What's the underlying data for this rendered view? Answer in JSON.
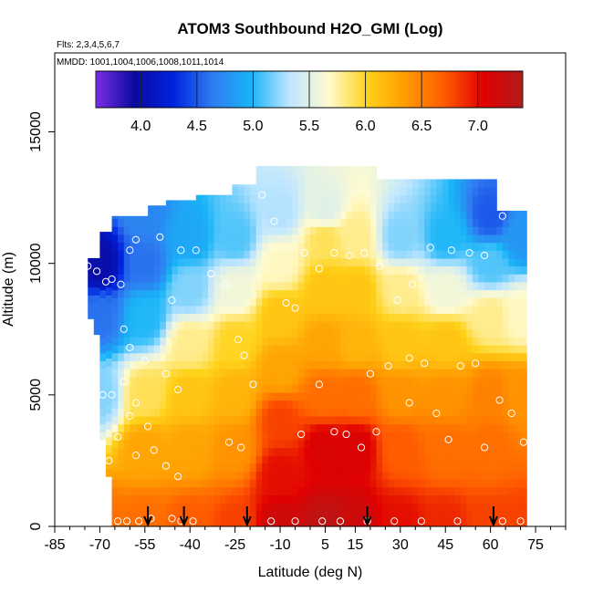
{
  "chart_data": {
    "type": "heatmap",
    "title": "ATOM3 Southbound H2O_GMI (Log)",
    "flights_label": "Flts: 2,3,4,5,6,7",
    "dates_label": "MMDD: 1001,1004,1006,1008,1011,1014",
    "xlabel": "Latitude (deg N)",
    "ylabel": "Altitude (m)",
    "xlim": [
      -85,
      85
    ],
    "ylim": [
      0,
      18000
    ],
    "x_ticks": [
      -85,
      -70,
      -55,
      -40,
      -25,
      -10,
      5,
      15,
      30,
      45,
      60,
      75
    ],
    "y_ticks": [
      0,
      5000,
      10000,
      15000
    ],
    "colorbar": {
      "range": [
        3.6,
        7.4
      ],
      "ticks": [
        "4.0",
        "4.5",
        "5.0",
        "5.5",
        "6.0",
        "6.5",
        "7.0"
      ],
      "tick_values": [
        4.0,
        4.5,
        5.0,
        5.5,
        6.0,
        6.5,
        7.0
      ],
      "divider_values": [
        3.6,
        4.0,
        4.5,
        5.0,
        5.5,
        6.0,
        6.5,
        7.0,
        7.4
      ],
      "colors": [
        "#7a2ee6",
        "#0a0a9e",
        "#0022e0",
        "#2f7cf0",
        "#19b4f7",
        "#bfe6ff",
        "#fffbd0",
        "#ffd21a",
        "#ff9a00",
        "#ff5a00",
        "#e00000",
        "#b21b1b"
      ]
    },
    "series": [
      {
        "values": [
          [
            -70,
            0,
            6.6
          ],
          [
            -70,
            5000,
            5.2
          ],
          [
            -70,
            8000,
            4.6
          ],
          [
            -70,
            10000,
            4.0
          ],
          [
            -55,
            0,
            6.6
          ],
          [
            -55,
            3000,
            6.3
          ],
          [
            -55,
            5000,
            5.9
          ],
          [
            -55,
            8000,
            5.0
          ],
          [
            -55,
            10000,
            4.6
          ],
          [
            -55,
            12000,
            4.7
          ],
          [
            -40,
            0,
            6.7
          ],
          [
            -40,
            3000,
            6.3
          ],
          [
            -40,
            5000,
            6.1
          ],
          [
            -40,
            7000,
            5.8
          ],
          [
            -40,
            9000,
            5.2
          ],
          [
            -40,
            11000,
            4.9
          ],
          [
            -25,
            0,
            6.8
          ],
          [
            -25,
            3000,
            6.4
          ],
          [
            -25,
            5000,
            6.2
          ],
          [
            -25,
            7000,
            6.0
          ],
          [
            -25,
            9000,
            5.6
          ],
          [
            -25,
            11000,
            5.1
          ],
          [
            -10,
            0,
            7.2
          ],
          [
            -10,
            2000,
            7.0
          ],
          [
            -10,
            4000,
            6.8
          ],
          [
            -10,
            6000,
            6.3
          ],
          [
            -10,
            8000,
            6.1
          ],
          [
            -10,
            10000,
            5.7
          ],
          [
            -10,
            12000,
            5.3
          ],
          [
            5,
            0,
            7.3
          ],
          [
            5,
            3000,
            7.1
          ],
          [
            5,
            5000,
            6.6
          ],
          [
            5,
            7000,
            6.3
          ],
          [
            5,
            9000,
            6.1
          ],
          [
            5,
            11000,
            5.9
          ],
          [
            5,
            12000,
            5.5
          ],
          [
            15,
            0,
            7.2
          ],
          [
            15,
            3000,
            7.1
          ],
          [
            15,
            5000,
            6.6
          ],
          [
            15,
            7000,
            6.2
          ],
          [
            15,
            9000,
            6.1
          ],
          [
            15,
            11000,
            5.8
          ],
          [
            30,
            0,
            7.0
          ],
          [
            30,
            3000,
            6.7
          ],
          [
            30,
            5000,
            6.4
          ],
          [
            30,
            7000,
            6.1
          ],
          [
            30,
            9000,
            5.8
          ],
          [
            30,
            11000,
            5.2
          ],
          [
            45,
            0,
            6.9
          ],
          [
            45,
            3000,
            6.6
          ],
          [
            45,
            5000,
            6.4
          ],
          [
            45,
            7000,
            6.1
          ],
          [
            45,
            9000,
            5.6
          ],
          [
            45,
            11000,
            5.0
          ],
          [
            60,
            0,
            6.8
          ],
          [
            60,
            3000,
            6.6
          ],
          [
            60,
            5000,
            6.5
          ],
          [
            60,
            8000,
            5.8
          ],
          [
            60,
            10000,
            5.1
          ],
          [
            60,
            11800,
            4.5
          ],
          [
            70,
            0,
            6.8
          ],
          [
            70,
            5000,
            6.4
          ],
          [
            70,
            8000,
            5.7
          ],
          [
            70,
            11000,
            4.8
          ]
        ]
      }
    ],
    "sample_points": [
      [
        -74,
        9900
      ],
      [
        -71,
        9700
      ],
      [
        -68,
        9300
      ],
      [
        -66,
        9400
      ],
      [
        -63,
        9200
      ],
      [
        -60,
        10500
      ],
      [
        -58,
        10900
      ],
      [
        -50,
        11000
      ],
      [
        -43,
        10500
      ],
      [
        -46,
        8600
      ],
      [
        -62,
        7500
      ],
      [
        -60,
        6800
      ],
      [
        -55,
        6300
      ],
      [
        -62,
        5500
      ],
      [
        -66,
        5000
      ],
      [
        -69,
        5000
      ],
      [
        -58,
        4700
      ],
      [
        -60,
        4200
      ],
      [
        -54,
        3800
      ],
      [
        -48,
        5800
      ],
      [
        -44,
        5200
      ],
      [
        -52,
        2900
      ],
      [
        -48,
        2300
      ],
      [
        -44,
        1900
      ],
      [
        -58,
        2700
      ],
      [
        -64,
        3400
      ],
      [
        -67,
        2500
      ],
      [
        -38,
        10500
      ],
      [
        -33,
        9600
      ],
      [
        -28,
        9200
      ],
      [
        -24,
        7100
      ],
      [
        -22,
        6500
      ],
      [
        -19,
        5400
      ],
      [
        -23,
        3000
      ],
      [
        -27,
        3200
      ],
      [
        -16,
        12600
      ],
      [
        -12,
        11600
      ],
      [
        -8,
        8500
      ],
      [
        -5,
        8300
      ],
      [
        -2,
        10400
      ],
      [
        3,
        9800
      ],
      [
        8,
        10400
      ],
      [
        13,
        10300
      ],
      [
        18,
        10400
      ],
      [
        23,
        9900
      ],
      [
        29,
        8600
      ],
      [
        34,
        9200
      ],
      [
        40,
        10600
      ],
      [
        47,
        10500
      ],
      [
        53,
        10400
      ],
      [
        58,
        10300
      ],
      [
        64,
        11800
      ],
      [
        3,
        5400
      ],
      [
        -3,
        3500
      ],
      [
        8,
        3600
      ],
      [
        12,
        3500
      ],
      [
        17,
        3000
      ],
      [
        22,
        3600
      ],
      [
        20,
        5800
      ],
      [
        26,
        6100
      ],
      [
        33,
        6400
      ],
      [
        38,
        6200
      ],
      [
        33,
        4700
      ],
      [
        42,
        4300
      ],
      [
        46,
        3300
      ],
      [
        50,
        6100
      ],
      [
        55,
        6200
      ],
      [
        58,
        3000
      ],
      [
        63,
        4800
      ],
      [
        67,
        4300
      ],
      [
        71,
        3200
      ],
      [
        -64,
        200
      ],
      [
        -61,
        200
      ],
      [
        -57,
        200
      ],
      [
        -53,
        300
      ],
      [
        -46,
        300
      ],
      [
        -43,
        200
      ],
      [
        -39,
        200
      ],
      [
        -13,
        200
      ],
      [
        -5,
        200
      ],
      [
        4,
        200
      ],
      [
        10,
        200
      ],
      [
        19,
        200
      ],
      [
        28,
        200
      ],
      [
        37,
        200
      ],
      [
        49,
        200
      ],
      [
        64,
        200
      ],
      [
        70,
        200
      ]
    ],
    "flight_markers": [
      -54,
      -42,
      -21,
      19,
      61
    ]
  }
}
